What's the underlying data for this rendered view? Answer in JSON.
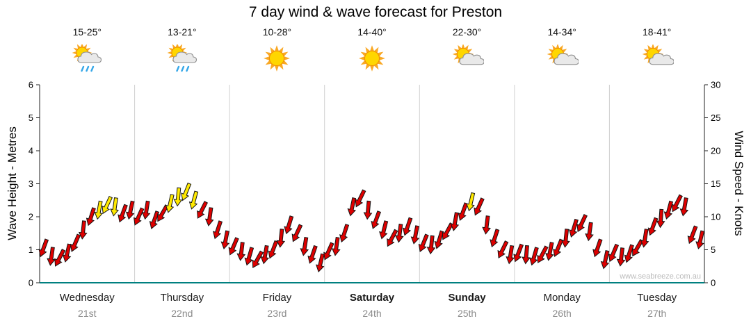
{
  "title": "7 day wind & wave forecast for Preston",
  "watermark": "www.seabreeze.com.au",
  "y_left": {
    "label": "Wave Height - Metres",
    "ticks": [
      0,
      1,
      2,
      3,
      4,
      5,
      6
    ]
  },
  "y_right": {
    "label": "Wind Speed - Knots",
    "ticks": [
      0,
      5,
      10,
      15,
      20,
      25,
      30
    ]
  },
  "days": [
    {
      "name": "Wednesday",
      "date": "21st",
      "temp": "15-25°",
      "icon": "sun-cloud-rain",
      "bold": false
    },
    {
      "name": "Thursday",
      "date": "22nd",
      "temp": "13-21°",
      "icon": "sun-cloud-rain",
      "bold": false
    },
    {
      "name": "Friday",
      "date": "23rd",
      "temp": "10-28°",
      "icon": "sun",
      "bold": false
    },
    {
      "name": "Saturday",
      "date": "24th",
      "temp": "14-40°",
      "icon": "sun",
      "bold": true
    },
    {
      "name": "Sunday",
      "date": "25th",
      "temp": "22-30°",
      "icon": "sun-cloud",
      "bold": true
    },
    {
      "name": "Monday",
      "date": "26th",
      "temp": "14-34°",
      "icon": "sun-cloud",
      "bold": false
    },
    {
      "name": "Tuesday",
      "date": "27th",
      "temp": "18-41°",
      "icon": "sun-cloud",
      "bold": false
    }
  ],
  "colors": {
    "arrow_normal": "#DD0000",
    "arrow_strong": "#FFE900",
    "arrow_outline": "#151515",
    "baseline": "#008080",
    "grid": "#d0d0d0",
    "axis": "#222222"
  },
  "chart_data": {
    "type": "line",
    "subtype": "wind-direction-arrow-series",
    "title": "7 day wind & wave forecast for Preston",
    "ylabel_left": "Wave Height - Metres",
    "ylabel_right": "Wind Speed - Knots",
    "ylim_left": [
      0,
      6
    ],
    "ylim_right": [
      0,
      30
    ],
    "x_categories": [
      "Wednesday 21st",
      "Thursday 22nd",
      "Friday 23rd",
      "Saturday 24th",
      "Sunday 25th",
      "Monday 26th",
      "Tuesday 27th"
    ],
    "samples_per_day": 12,
    "grid": "vertical day separators only",
    "legend": "none",
    "point_format": [
      "wave_height_m",
      "direction_deg",
      "strong_flag"
    ],
    "points": [
      [
        1.05,
        200,
        0
      ],
      [
        0.8,
        188,
        0
      ],
      [
        0.75,
        207,
        0
      ],
      [
        0.9,
        193,
        0
      ],
      [
        1.2,
        203,
        0
      ],
      [
        1.6,
        186,
        0
      ],
      [
        2.0,
        198,
        0
      ],
      [
        2.2,
        190,
        1
      ],
      [
        2.35,
        205,
        1
      ],
      [
        2.3,
        188,
        1
      ],
      [
        2.1,
        200,
        0
      ],
      [
        2.2,
        192,
        0
      ],
      [
        2.0,
        204,
        0
      ],
      [
        2.2,
        189,
        0
      ],
      [
        1.9,
        199,
        0
      ],
      [
        2.1,
        210,
        0
      ],
      [
        2.4,
        193,
        1
      ],
      [
        2.6,
        185,
        1
      ],
      [
        2.75,
        202,
        1
      ],
      [
        2.5,
        195,
        1
      ],
      [
        2.2,
        207,
        0
      ],
      [
        2.0,
        188,
        0
      ],
      [
        1.6,
        198,
        0
      ],
      [
        1.3,
        191,
        0
      ],
      [
        1.1,
        203,
        0
      ],
      [
        0.95,
        187,
        0
      ],
      [
        0.8,
        196,
        0
      ],
      [
        0.7,
        209,
        0
      ],
      [
        0.85,
        190,
        0
      ],
      [
        1.0,
        201,
        0
      ],
      [
        1.35,
        186,
        0
      ],
      [
        1.75,
        197,
        0
      ],
      [
        1.5,
        205,
        0
      ],
      [
        1.1,
        189,
        0
      ],
      [
        0.85,
        199,
        0
      ],
      [
        0.6,
        193,
        0
      ],
      [
        0.95,
        204,
        0
      ],
      [
        1.1,
        188,
        0
      ],
      [
        1.5,
        198,
        0
      ],
      [
        2.3,
        192,
        0
      ],
      [
        2.55,
        206,
        0
      ],
      [
        2.2,
        185,
        0
      ],
      [
        1.9,
        200,
        0
      ],
      [
        1.6,
        194,
        0
      ],
      [
        1.35,
        208,
        0
      ],
      [
        1.5,
        187,
        0
      ],
      [
        1.7,
        199,
        0
      ],
      [
        1.45,
        191,
        0
      ],
      [
        1.2,
        202,
        0
      ],
      [
        1.15,
        186,
        0
      ],
      [
        1.3,
        197,
        0
      ],
      [
        1.55,
        209,
        0
      ],
      [
        1.85,
        190,
        0
      ],
      [
        2.15,
        200,
        0
      ],
      [
        2.45,
        193,
        1
      ],
      [
        2.3,
        204,
        0
      ],
      [
        1.75,
        187,
        0
      ],
      [
        1.35,
        198,
        0
      ],
      [
        1.0,
        206,
        0
      ],
      [
        0.85,
        189,
        0
      ],
      [
        0.9,
        201,
        0
      ],
      [
        0.85,
        185,
        0
      ],
      [
        0.8,
        196,
        0
      ],
      [
        0.85,
        208,
        0
      ],
      [
        0.95,
        191,
        0
      ],
      [
        1.05,
        202,
        0
      ],
      [
        1.35,
        186,
        0
      ],
      [
        1.65,
        197,
        0
      ],
      [
        1.8,
        205,
        0
      ],
      [
        1.55,
        188,
        0
      ],
      [
        1.05,
        199,
        0
      ],
      [
        0.7,
        192,
        0
      ],
      [
        0.9,
        203,
        0
      ],
      [
        0.78,
        187,
        0
      ],
      [
        0.88,
        198,
        0
      ],
      [
        1.05,
        210,
        0
      ],
      [
        1.35,
        189,
        0
      ],
      [
        1.7,
        200,
        0
      ],
      [
        1.95,
        184,
        0
      ],
      [
        2.2,
        195,
        0
      ],
      [
        2.4,
        207,
        0
      ],
      [
        2.3,
        190,
        0
      ],
      [
        1.45,
        201,
        0
      ],
      [
        1.3,
        193,
        0
      ]
    ]
  }
}
